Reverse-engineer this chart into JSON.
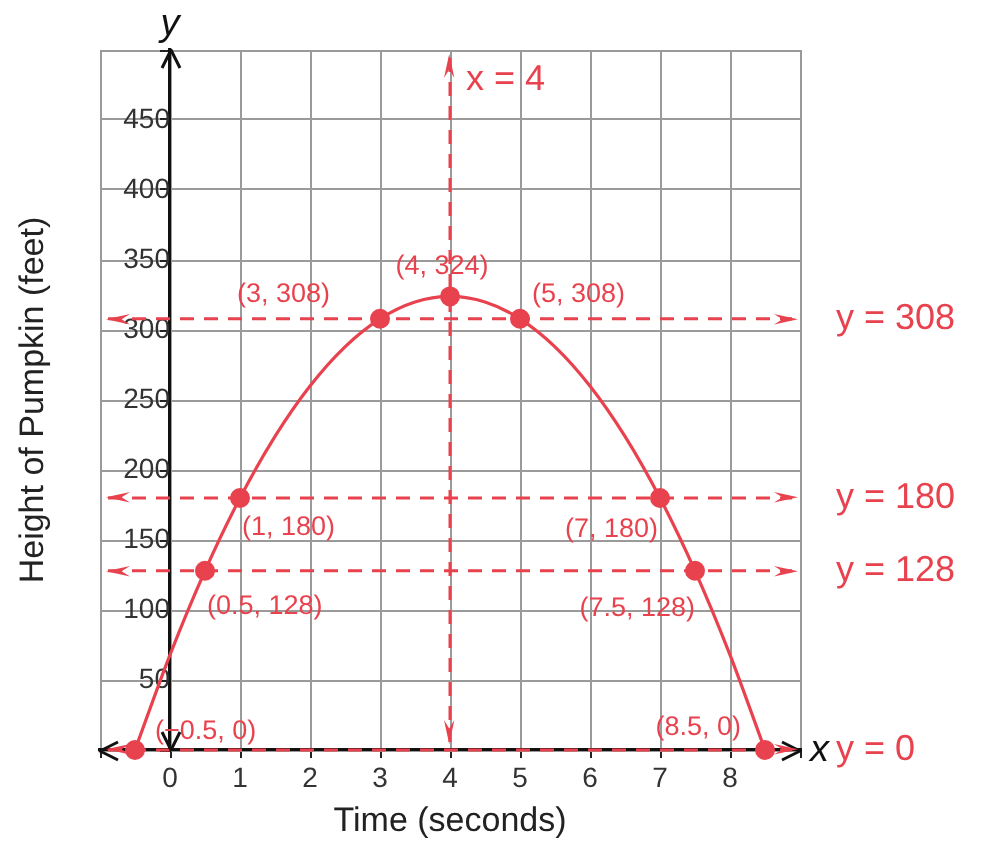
{
  "chart_data": {
    "type": "line",
    "xlabel": "Time (seconds)",
    "ylabel": "Height of Pumpkin (feet)",
    "xlim": [
      -1,
      9
    ],
    "xticks": [
      {
        "value": -1,
        "label": null
      },
      0,
      1,
      2,
      3,
      4,
      5,
      6,
      7,
      8,
      {
        "value": 9,
        "label": null
      }
    ],
    "ylim": [
      0,
      500
    ],
    "yticks": [
      {
        "value": 0,
        "label": null
      },
      50,
      100,
      150,
      200,
      250,
      300,
      350,
      400,
      450,
      {
        "value": 500,
        "label": null
      }
    ],
    "grid": true,
    "series": [
      {
        "color": "#e8424e",
        "x": [
          -0.5,
          0,
          0.5,
          1,
          1.5,
          2,
          2.5,
          3,
          3.5,
          4,
          4.5,
          5,
          5.5,
          6,
          6.5,
          7,
          7.5,
          8,
          8.5
        ],
        "values": [
          0,
          68,
          128,
          180,
          224,
          260,
          288,
          308,
          320,
          324,
          320,
          308,
          288,
          260,
          224,
          180,
          128,
          68,
          0
        ]
      },
      {
        "type": "scatter",
        "color": "#e8424e",
        "marker": "circle",
        "x": [
          -0.5,
          0.5,
          1,
          3,
          4,
          5,
          7,
          7.5,
          8.5
        ],
        "values": [
          0,
          128,
          180,
          308,
          324,
          308,
          180,
          128,
          0
        ],
        "value_labels": [
          "(−0.5, 0)",
          "(0.5, 128)",
          "(1, 180)",
          "(3, 308)",
          "(4, 324)",
          "(5, 308)",
          "(7, 180)",
          "(7.5, 128)",
          "(8.5, 0)"
        ]
      }
    ],
    "ref_lines": [
      {
        "axis": "x",
        "value": 4,
        "label": "x = 4",
        "color": "#e8424e",
        "line_style": "dashed"
      },
      {
        "axis": "y",
        "value": 308,
        "label": "y = 308",
        "color": "#e8424e",
        "line_style": "dashed"
      },
      {
        "axis": "y",
        "value": 180,
        "label": "y = 180",
        "color": "#e8424e",
        "line_style": "dashed"
      },
      {
        "axis": "y",
        "value": 128,
        "label": "y = 128",
        "color": "#e8424e",
        "line_style": "dashed"
      },
      {
        "axis": "y",
        "value": 0,
        "label": "y = 0",
        "color": "#e8424e",
        "line_style": "dashed"
      }
    ],
    "annotations": [
      "y",
      "x"
    ]
  }
}
